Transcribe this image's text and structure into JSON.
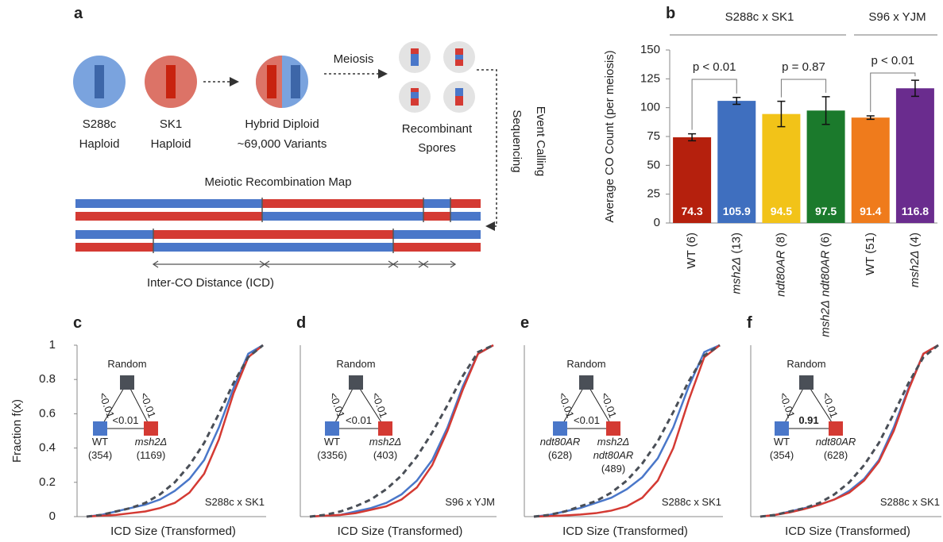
{
  "diagram": {
    "letter": "a",
    "haploid1": [
      "S288c",
      "Haploid"
    ],
    "haploid2": [
      "SK1",
      "Haploid"
    ],
    "diploid": [
      "Hybrid Diploid",
      "~69,000 Variants"
    ],
    "step1": "Meiosis",
    "spores": [
      "Recombinant",
      "Spores"
    ],
    "step2": [
      "Sequencing",
      "Event Calling"
    ],
    "map_title": "Meiotic Recombination Map",
    "distance": "Inter-CO Distance (ICD)"
  },
  "chart_data": [
    {
      "type": "bar",
      "panel": "b",
      "group_labels": [
        "S288c x SK1",
        "S96 x  YJM"
      ],
      "categories": [
        "WT (6)",
        "msh2Δ (13)",
        "ndt80AR (8)",
        "msh2Δ ndt80AR (6)",
        "WT (51)",
        "msh2Δ (4)"
      ],
      "values": [
        74.3,
        105.9,
        94.5,
        97.5,
        91.4,
        116.8
      ],
      "errors": [
        3,
        3,
        11,
        12,
        1.5,
        7
      ],
      "colors": [
        "#b5200d",
        "#3f6fbf",
        "#f2c318",
        "#1b7a2c",
        "#ef7b1c",
        "#6a2c8e"
      ],
      "annotations": [
        "p < 0.01",
        "p = 0.87",
        "p < 0.01"
      ],
      "ylabel": "Average CO Count (per meiosis)",
      "ylim": [
        0,
        150
      ],
      "yticks": [
        0,
        25,
        50,
        75,
        100,
        125,
        150
      ]
    },
    {
      "type": "line",
      "panel": "c",
      "ylabel": "Fraction f(x)",
      "xlabel": "ICD Size (Transformed)",
      "categories": [
        null,
        null,
        null,
        null,
        null,
        null,
        null,
        null,
        null,
        null,
        null,
        null,
        null
      ],
      "series": [
        {
          "color": "#4a77c9",
          "values": [
            0,
            0.01,
            0.03,
            0.05,
            0.07,
            0.1,
            0.15,
            0.22,
            0.33,
            0.52,
            0.75,
            0.95,
            1
          ]
        },
        {
          "color": "#d43a33",
          "values": [
            0,
            0.005,
            0.01,
            0.02,
            0.03,
            0.05,
            0.08,
            0.14,
            0.25,
            0.45,
            0.72,
            0.93,
            1
          ]
        },
        {
          "color": "#4a4f57",
          "dashed": true,
          "values": [
            0,
            0.01,
            0.03,
            0.05,
            0.08,
            0.13,
            0.2,
            0.3,
            0.43,
            0.6,
            0.78,
            0.93,
            1
          ]
        }
      ],
      "ylim": [
        0,
        1
      ],
      "yticks": [
        0,
        0.2,
        0.4,
        0.6,
        0.8,
        1
      ],
      "note": "S288c x SK1",
      "inset": {
        "top": "Random",
        "left_edge": "<0.01",
        "right_edge": "<0.01",
        "bottom_edge": "<0.01",
        "left_color": "#4a77c9",
        "right_color": "#d43a33",
        "left_label": [
          "WT",
          "(354)"
        ],
        "right_label": [
          "msh2Δ",
          "(1169)"
        ]
      }
    },
    {
      "type": "line",
      "panel": "d",
      "xlabel": "ICD Size (Transformed)",
      "categories": [
        null,
        null,
        null,
        null,
        null,
        null,
        null,
        null,
        null,
        null,
        null,
        null,
        null
      ],
      "series": [
        {
          "color": "#4a77c9",
          "values": [
            0,
            0.005,
            0.01,
            0.03,
            0.05,
            0.08,
            0.13,
            0.21,
            0.33,
            0.52,
            0.76,
            0.95,
            1
          ]
        },
        {
          "color": "#d43a33",
          "values": [
            0,
            0.005,
            0.01,
            0.02,
            0.04,
            0.06,
            0.1,
            0.17,
            0.3,
            0.5,
            0.74,
            0.95,
            1
          ]
        },
        {
          "color": "#4a4f57",
          "dashed": true,
          "values": [
            0,
            0.01,
            0.03,
            0.06,
            0.1,
            0.16,
            0.24,
            0.35,
            0.49,
            0.65,
            0.82,
            0.96,
            1
          ]
        }
      ],
      "ylim": [
        0,
        1
      ],
      "note": "S96 x YJM",
      "inset": {
        "top": "Random",
        "left_edge": "<0.01",
        "right_edge": "<0.01",
        "bottom_edge": "<0.01",
        "left_color": "#4a77c9",
        "right_color": "#d43a33",
        "left_label": [
          "WT",
          "(3356)"
        ],
        "right_label": [
          "msh2Δ",
          "(403)"
        ]
      }
    },
    {
      "type": "line",
      "panel": "e",
      "xlabel": "ICD Size (Transformed)",
      "categories": [
        null,
        null,
        null,
        null,
        null,
        null,
        null,
        null,
        null,
        null,
        null,
        null,
        null
      ],
      "series": [
        {
          "color": "#4a77c9",
          "values": [
            0,
            0.01,
            0.03,
            0.05,
            0.08,
            0.11,
            0.16,
            0.23,
            0.34,
            0.52,
            0.76,
            0.96,
            1
          ]
        },
        {
          "color": "#d43a33",
          "values": [
            0,
            0.003,
            0.007,
            0.012,
            0.02,
            0.035,
            0.06,
            0.11,
            0.21,
            0.4,
            0.68,
            0.93,
            1
          ]
        },
        {
          "color": "#4a4f57",
          "dashed": true,
          "values": [
            0,
            0.01,
            0.03,
            0.06,
            0.09,
            0.14,
            0.21,
            0.31,
            0.44,
            0.61,
            0.79,
            0.94,
            1
          ]
        }
      ],
      "ylim": [
        0,
        1
      ],
      "note": "S288c x SK1",
      "inset": {
        "top": "Random",
        "left_edge": "<0.01",
        "right_edge": "<0.01",
        "bottom_edge": "<0.01",
        "left_color": "#4a77c9",
        "right_color": "#d43a33",
        "left_label": [
          "ndt80AR",
          "(628)"
        ],
        "right_label": [
          "msh2Δ",
          "ndt80AR",
          "(489)"
        ]
      }
    },
    {
      "type": "line",
      "panel": "f",
      "xlabel": "ICD Size (Transformed)",
      "categories": [
        null,
        null,
        null,
        null,
        null,
        null,
        null,
        null,
        null,
        null,
        null,
        null,
        null
      ],
      "series": [
        {
          "color": "#4a77c9",
          "values": [
            0,
            0.01,
            0.03,
            0.05,
            0.07,
            0.1,
            0.15,
            0.22,
            0.33,
            0.52,
            0.75,
            0.95,
            1
          ]
        },
        {
          "color": "#d43a33",
          "values": [
            0,
            0.01,
            0.025,
            0.045,
            0.07,
            0.1,
            0.14,
            0.21,
            0.32,
            0.5,
            0.74,
            0.95,
            1
          ]
        },
        {
          "color": "#4a4f57",
          "dashed": true,
          "values": [
            0,
            0.01,
            0.03,
            0.05,
            0.08,
            0.13,
            0.2,
            0.3,
            0.43,
            0.6,
            0.78,
            0.93,
            1
          ]
        }
      ],
      "ylim": [
        0,
        1
      ],
      "note": "S288c x SK1",
      "inset": {
        "top": "Random",
        "left_edge": "<0.01",
        "right_edge": "<0.01",
        "bottom_edge": "0.91",
        "bottom_bold": true,
        "left_color": "#4a77c9",
        "right_color": "#d43a33",
        "left_label": [
          "WT",
          "(354)"
        ],
        "right_label": [
          "ndt80AR",
          "(628)"
        ]
      }
    }
  ]
}
